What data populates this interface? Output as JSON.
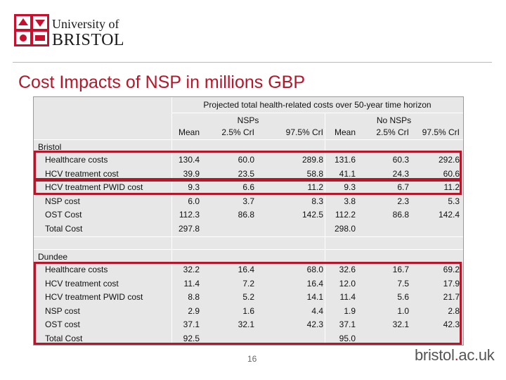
{
  "logo": {
    "line1": "University of",
    "line2": "BRISTOL"
  },
  "slide": {
    "title": "Cost Impacts of NSP in millions GBP",
    "page_number": "16"
  },
  "footer": {
    "url_part1": "bristol",
    "url_dot": ".",
    "url_part2": "ac.uk"
  },
  "table": {
    "header_main": "Projected total health-related costs over 50-year time horizon",
    "group_nsps": "NSPs",
    "group_no_nsps": "No NSPs",
    "col_labels": [
      "Mean",
      "2.5% CrI",
      "97.5% CrI",
      "Mean",
      "2.5% CrI",
      "97.5% CrI"
    ],
    "sections": [
      {
        "name": "Bristol",
        "rows": [
          {
            "label": "Healthcare costs",
            "values": [
              "130.4",
              "60.0",
              "289.8",
              "131.6",
              "60.3",
              "292.6"
            ]
          },
          {
            "label": "HCV treatment cost",
            "values": [
              "39.9",
              "23.5",
              "58.8",
              "41.1",
              "24.3",
              "60.6"
            ]
          },
          {
            "label": "HCV treatment PWID cost",
            "values": [
              "9.3",
              "6.6",
              "11.2",
              "9.3",
              "6.7",
              "11.2"
            ]
          },
          {
            "label": "NSP cost",
            "values": [
              "6.0",
              "3.7",
              "8.3",
              "3.8",
              "2.3",
              "5.3"
            ]
          },
          {
            "label": "OST Cost",
            "values": [
              "112.3",
              "86.8",
              "142.5",
              "112.2",
              "86.8",
              "142.4"
            ]
          },
          {
            "label": "Total Cost",
            "values": [
              "297.8",
              "",
              "",
              "298.0",
              "",
              ""
            ]
          }
        ]
      },
      {
        "name": "Dundee",
        "rows": [
          {
            "label": "Healthcare costs",
            "values": [
              "32.2",
              "16.4",
              "68.0",
              "32.6",
              "16.7",
              "69.2"
            ]
          },
          {
            "label": "HCV treatment cost",
            "values": [
              "11.4",
              "7.2",
              "16.4",
              "12.0",
              "7.5",
              "17.9"
            ]
          },
          {
            "label": "HCV treatment PWID cost",
            "values": [
              "8.8",
              "5.2",
              "14.1",
              "11.4",
              "5.6",
              "21.7"
            ]
          },
          {
            "label": "NSP cost",
            "values": [
              "2.9",
              "1.6",
              "4.4",
              "1.9",
              "1.0",
              "2.8"
            ]
          },
          {
            "label": "OST cost",
            "values": [
              "37.1",
              "32.1",
              "42.3",
              "37.1",
              "32.1",
              "42.3"
            ]
          },
          {
            "label": "Total Cost",
            "values": [
              "92.5",
              "",
              "",
              "95.0",
              "",
              ""
            ]
          }
        ]
      }
    ]
  }
}
